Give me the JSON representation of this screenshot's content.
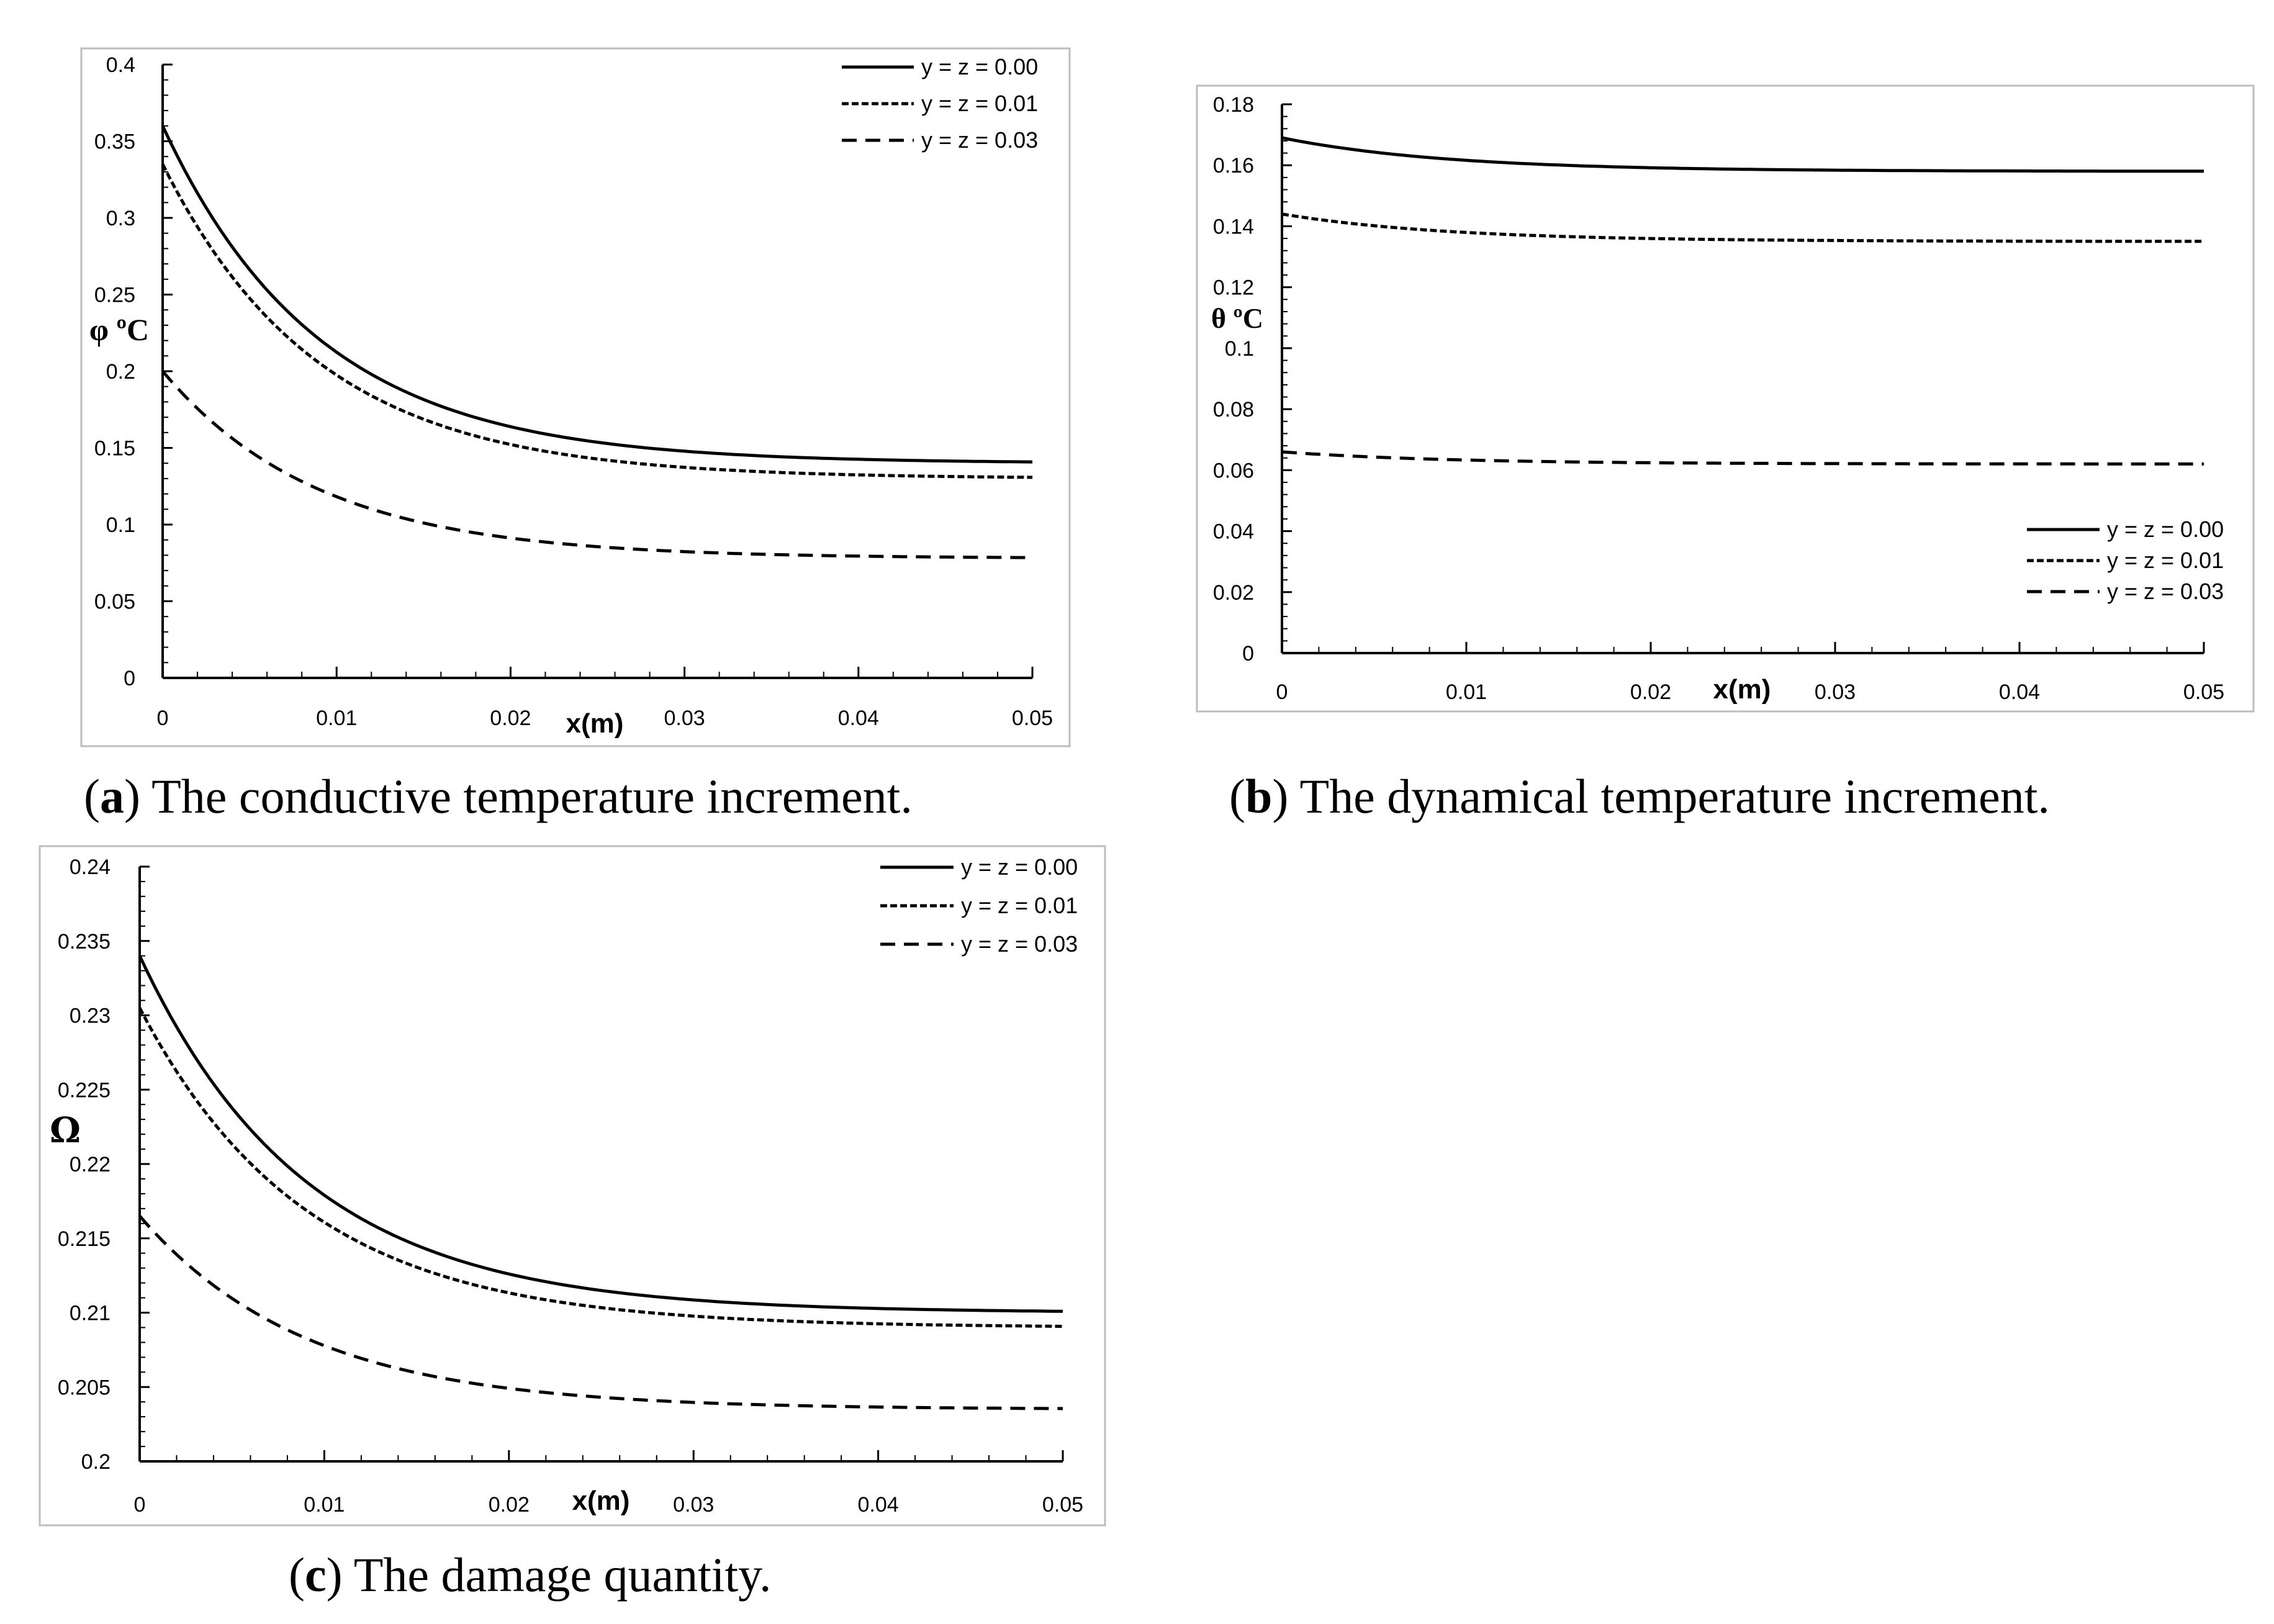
{
  "chart_data": [
    {
      "type": "line",
      "panel": "a",
      "ylabel": "φ ºC",
      "xlabel": "x(m)",
      "xlim": [
        0,
        0.05
      ],
      "ylim": [
        0,
        0.4
      ],
      "xticks": [
        0,
        0.01,
        0.02,
        0.03,
        0.04,
        0.05
      ],
      "xtick_labels": [
        "0",
        "0.01",
        "0.02",
        "0.03",
        "0.04",
        "0.05"
      ],
      "yticks": [
        0,
        0.05,
        0.1,
        0.15,
        0.2,
        0.25,
        0.3,
        0.35,
        0.4
      ],
      "ytick_labels": [
        "0",
        "0.05",
        "0.1",
        "0.15",
        "0.2",
        "0.25",
        "0.3",
        "0.35",
        "0.4"
      ],
      "legend_position": "top-right",
      "series": [
        {
          "name": "y = z = 0.00",
          "style": "solid",
          "start": 0.36,
          "end": 0.14,
          "decay": 0.009
        },
        {
          "name": "y = z = 0.01",
          "style": "dotted",
          "start": 0.335,
          "end": 0.13,
          "decay": 0.009
        },
        {
          "name": "y = z = 0.03",
          "style": "dashed",
          "start": 0.2,
          "end": 0.078,
          "decay": 0.009
        }
      ]
    },
    {
      "type": "line",
      "panel": "b",
      "ylabel": "θ ºC",
      "xlabel": "x(m)",
      "xlim": [
        0,
        0.05
      ],
      "ylim": [
        0,
        0.18
      ],
      "xticks": [
        0,
        0.01,
        0.02,
        0.03,
        0.04,
        0.05
      ],
      "xtick_labels": [
        "0",
        "0.01",
        "0.02",
        "0.03",
        "0.04",
        "0.05"
      ],
      "yticks": [
        0,
        0.02,
        0.04,
        0.06,
        0.08,
        0.1,
        0.12,
        0.14,
        0.16,
        0.18
      ],
      "ytick_labels": [
        "0",
        "0.02",
        "0.04",
        "0.06",
        "0.08",
        "0.1",
        "0.12",
        "0.14",
        "0.16",
        "0.18"
      ],
      "legend_position": "bottom-right",
      "series": [
        {
          "name": "y = z = 0.00",
          "style": "solid",
          "start": 0.169,
          "end": 0.158,
          "decay": 0.009
        },
        {
          "name": "y = z = 0.01",
          "style": "dotted",
          "start": 0.144,
          "end": 0.135,
          "decay": 0.009
        },
        {
          "name": "y = z = 0.03",
          "style": "dashed",
          "start": 0.066,
          "end": 0.062,
          "decay": 0.009
        }
      ]
    },
    {
      "type": "line",
      "panel": "c",
      "ylabel": "Ω",
      "xlabel": "x(m)",
      "xlim": [
        0,
        0.05
      ],
      "ylim": [
        0.2,
        0.24
      ],
      "xticks": [
        0,
        0.01,
        0.02,
        0.03,
        0.04,
        0.05
      ],
      "xtick_labels": [
        "0",
        "0.01",
        "0.02",
        "0.03",
        "0.04",
        "0.05"
      ],
      "yticks": [
        0.2,
        0.205,
        0.21,
        0.215,
        0.22,
        0.225,
        0.23,
        0.235,
        0.24
      ],
      "ytick_labels": [
        "0.2",
        "0.205",
        "0.21",
        "0.215",
        "0.22",
        "0.225",
        "0.23",
        "0.235",
        "0.24"
      ],
      "legend_position": "top-right",
      "series": [
        {
          "name": "y = z = 0.00",
          "style": "solid",
          "start": 0.234,
          "end": 0.21,
          "decay": 0.009
        },
        {
          "name": "y = z = 0.01",
          "style": "dotted",
          "start": 0.2305,
          "end": 0.209,
          "decay": 0.009
        },
        {
          "name": "y = z = 0.03",
          "style": "dashed",
          "start": 0.2165,
          "end": 0.2035,
          "decay": 0.009
        }
      ]
    }
  ],
  "captions": {
    "a": {
      "tag": "a",
      "text": "The conductive temperature increment."
    },
    "b": {
      "tag": "b",
      "text": "The dynamical temperature increment."
    },
    "c": {
      "tag": "c",
      "text": "The damage quantity."
    }
  },
  "colors": {
    "line": "#000000",
    "frame": "#bdbdbd",
    "text": "#000000"
  }
}
